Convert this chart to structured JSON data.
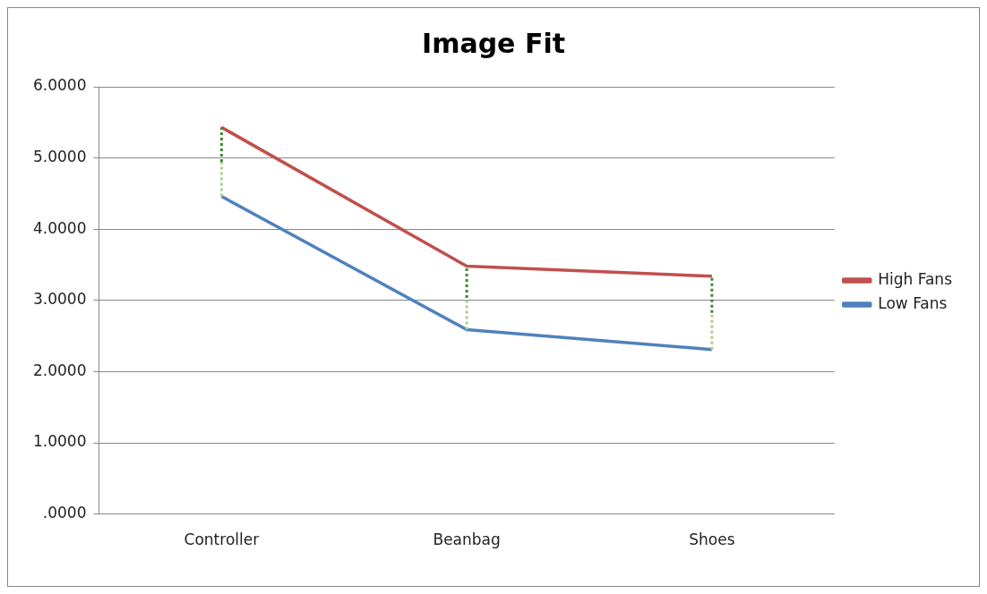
{
  "chart_data": {
    "type": "line",
    "title": "Image Fit",
    "categories": [
      "Controller",
      "Beanbag",
      "Shoes"
    ],
    "series": [
      {
        "name": "High Fans",
        "color": "#c0504d",
        "values": [
          5.43,
          3.48,
          3.34
        ],
        "errors": [
          [
            4.945,
            5.43
          ],
          [
            3.035,
            3.48
          ],
          [
            2.825,
            3.34
          ]
        ]
      },
      {
        "name": "Low Fans",
        "color": "#4f81bd",
        "values": [
          4.46,
          2.59,
          2.31
        ],
        "errors": [
          [
            4.46,
            4.945
          ],
          [
            2.59,
            3.035
          ],
          [
            2.31,
            2.825
          ]
        ]
      }
    ],
    "ylim": [
      0,
      6
    ],
    "yticks": [
      {
        "value": 0,
        "label": ".0000"
      },
      {
        "value": 1,
        "label": "1.0000"
      },
      {
        "value": 2,
        "label": "2.0000"
      },
      {
        "value": 3,
        "label": "3.0000"
      },
      {
        "value": 4,
        "label": "4.0000"
      },
      {
        "value": 5,
        "label": "5.0000"
      },
      {
        "value": 6,
        "label": "6.0000"
      }
    ],
    "grid": "y",
    "legend": "right",
    "marker": "none",
    "line_style": "solid"
  }
}
